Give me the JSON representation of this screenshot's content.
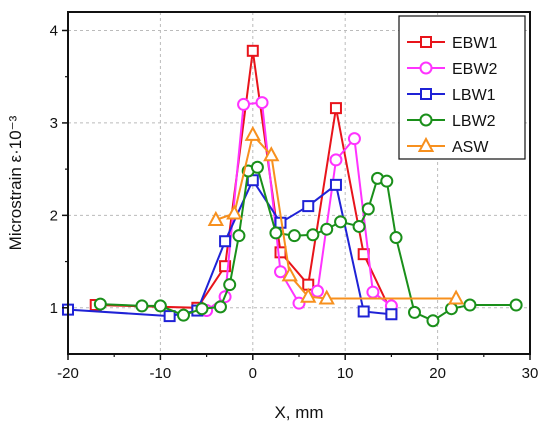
{
  "chart_data": {
    "type": "line",
    "xlabel": "X, mm",
    "ylabel": "Microstrain ε·10⁻³",
    "xlim": [
      -20,
      30
    ],
    "ylim": [
      0.5,
      4.2
    ],
    "xticks": [
      -20,
      -10,
      0,
      10,
      20,
      30
    ],
    "yticks": [
      1,
      2,
      3,
      4
    ],
    "grid": true,
    "legend_position": "top-right",
    "series": [
      {
        "name": "EBW1",
        "color": "#e8141b",
        "marker": "square",
        "points": [
          [
            -17,
            1.03
          ],
          [
            -6,
            1.0
          ],
          [
            -3,
            1.45
          ],
          [
            0,
            3.78
          ],
          [
            3,
            1.6
          ],
          [
            6,
            1.25
          ],
          [
            9,
            3.16
          ],
          [
            12,
            1.58
          ],
          [
            15,
            0.95
          ]
        ]
      },
      {
        "name": "EBW2",
        "color": "#ff33ff",
        "marker": "circle",
        "points": [
          [
            -5,
            0.97
          ],
          [
            -3,
            1.12
          ],
          [
            -1,
            3.2
          ],
          [
            1,
            3.22
          ],
          [
            3,
            1.39
          ],
          [
            5,
            1.05
          ],
          [
            7,
            1.18
          ],
          [
            9,
            2.6
          ],
          [
            11,
            2.83
          ],
          [
            13,
            1.17
          ],
          [
            15,
            1.02
          ]
        ]
      },
      {
        "name": "LBW1",
        "color": "#1f22d6",
        "marker": "square",
        "points": [
          [
            -20,
            0.98
          ],
          [
            -9,
            0.91
          ],
          [
            -6,
            0.97
          ],
          [
            -3,
            1.72
          ],
          [
            0,
            2.38
          ],
          [
            3,
            1.92
          ],
          [
            6,
            2.1
          ],
          [
            9,
            2.33
          ],
          [
            12,
            0.96
          ],
          [
            15,
            0.93
          ]
        ]
      },
      {
        "name": "LBW2",
        "color": "#1a8f1a",
        "marker": "circle",
        "points": [
          [
            -16.5,
            1.04
          ],
          [
            -12,
            1.02
          ],
          [
            -10,
            1.02
          ],
          [
            -7.5,
            0.92
          ],
          [
            -5.5,
            0.99
          ],
          [
            -3.5,
            1.01
          ],
          [
            -2.5,
            1.25
          ],
          [
            -1.5,
            1.78
          ],
          [
            -0.5,
            2.48
          ],
          [
            0.5,
            2.52
          ],
          [
            2.5,
            1.81
          ],
          [
            4.5,
            1.78
          ],
          [
            6.5,
            1.79
          ],
          [
            8,
            1.85
          ],
          [
            9.5,
            1.93
          ],
          [
            11.5,
            1.88
          ],
          [
            12.5,
            2.07
          ],
          [
            13.5,
            2.4
          ],
          [
            14.5,
            2.37
          ],
          [
            15.5,
            1.76
          ],
          [
            17.5,
            0.95
          ],
          [
            19.5,
            0.86
          ],
          [
            21.5,
            0.99
          ],
          [
            23.5,
            1.03
          ],
          [
            28.5,
            1.03
          ]
        ]
      },
      {
        "name": "ASW",
        "color": "#f7901e",
        "marker": "triangle",
        "points": [
          [
            -4,
            1.95
          ],
          [
            -2,
            2.02
          ],
          [
            0,
            2.87
          ],
          [
            2,
            2.65
          ],
          [
            4,
            1.35
          ],
          [
            6,
            1.12
          ],
          [
            8,
            1.1
          ],
          [
            22,
            1.1
          ]
        ]
      }
    ]
  }
}
